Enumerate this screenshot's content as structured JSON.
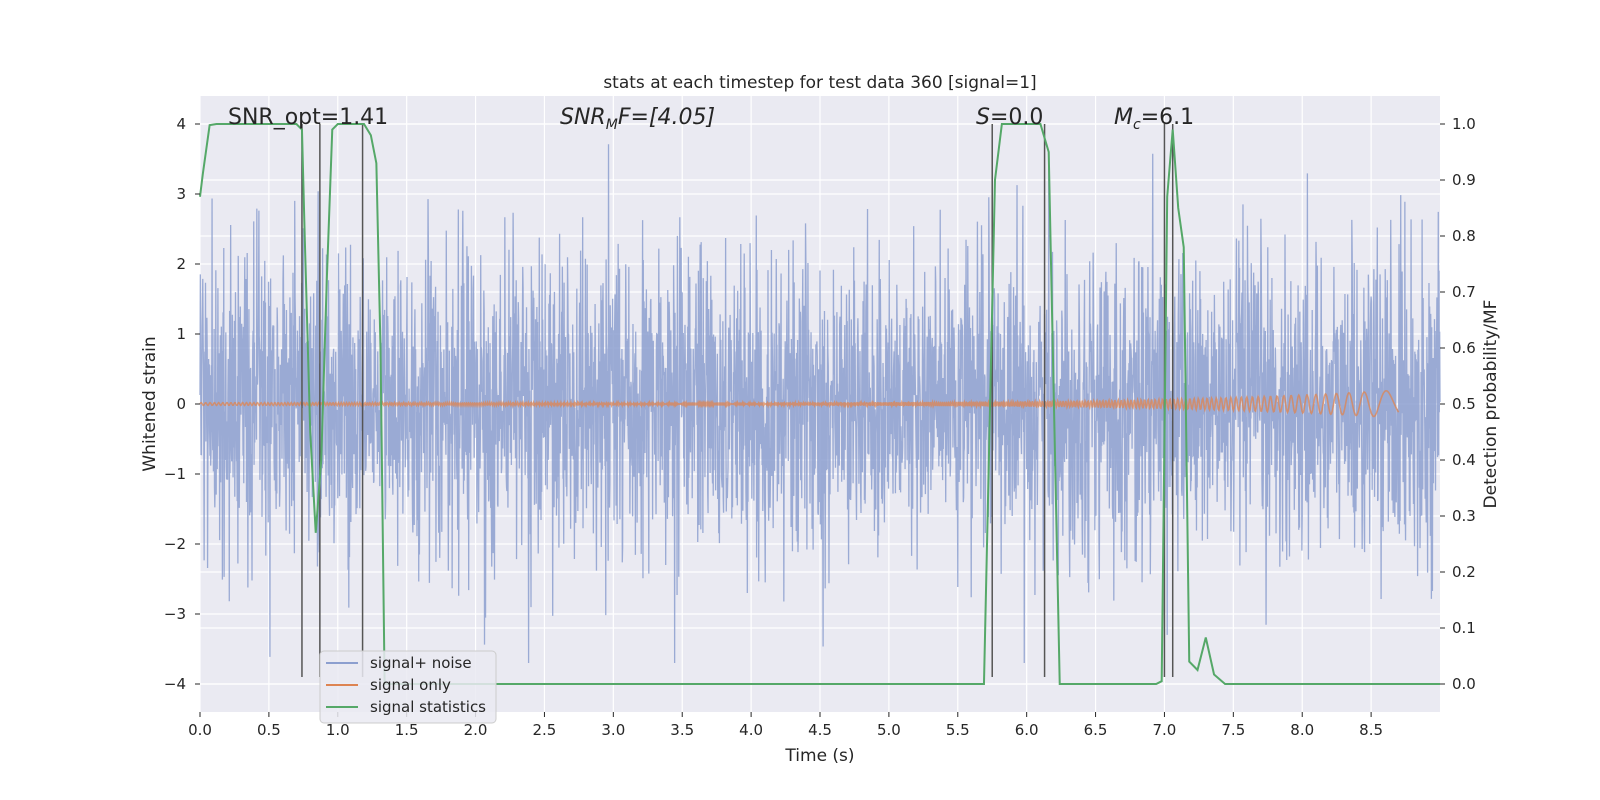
{
  "chart_data": {
    "type": "line",
    "title": "stats at each timestep for test data 360 [signal=1]",
    "xlabel": "Time (s)",
    "ylabel": "Whitened strain",
    "ylabel_right": "Detection probability/MF",
    "xlim": [
      0,
      9.0
    ],
    "ylim": [
      -4.4,
      4.4
    ],
    "ylim_right": [
      -0.05,
      1.05
    ],
    "x_ticks": [
      "0.0",
      "0.5",
      "1.0",
      "1.5",
      "2.0",
      "2.5",
      "3.0",
      "3.5",
      "4.0",
      "4.5",
      "5.0",
      "5.5",
      "6.0",
      "6.5",
      "7.0",
      "7.5",
      "8.0",
      "8.5"
    ],
    "y_ticks": [
      "4",
      "3",
      "2",
      "1",
      "0",
      "−1",
      "−2",
      "−3",
      "−4"
    ],
    "y_ticks_right": [
      "1.0",
      "0.9",
      "0.8",
      "0.7",
      "0.6",
      "0.5",
      "0.4",
      "0.3",
      "0.2",
      "0.1",
      "0.0"
    ],
    "grid": true,
    "legend_position": "lower-left",
    "annotations": {
      "snr_opt": "SNR_opt=1.41",
      "snr_mf_main": "SNR",
      "snr_mf_sub": "M",
      "snr_mf_rest": "F=[4.05]",
      "s_main": "S",
      "s_rest": "=0.0",
      "mc_main": "M",
      "mc_sub": "c",
      "mc_rest": "=6.1"
    },
    "series": [
      {
        "name": "signal+ noise",
        "color": "#8c9fcf",
        "description_noise_std": 1.05,
        "x_range": [
          0,
          9.0
        ]
      },
      {
        "name": "signal only",
        "color": "#dd8452",
        "x_range": [
          0,
          8.7
        ],
        "amplitude_end": 0.18
      },
      {
        "name": "signal statistics",
        "color": "#55a868",
        "axis": "right",
        "x": [
          0.0,
          0.02,
          0.07,
          0.12,
          0.5,
          0.7,
          0.74,
          0.76,
          0.8,
          0.84,
          0.88,
          0.92,
          0.96,
          1.0,
          1.19,
          1.24,
          1.28,
          1.31,
          1.34,
          1.4,
          1.6,
          5.69,
          5.73,
          5.77,
          5.82,
          5.87,
          6.1,
          6.16,
          6.24,
          6.4,
          6.85,
          6.94,
          6.98,
          7.02,
          7.06,
          7.1,
          7.14,
          7.18,
          7.24,
          7.3,
          7.36,
          7.44,
          9.0
        ],
        "y": [
          0.87,
          0.91,
          0.998,
          1.0,
          1.0,
          1.0,
          0.99,
          0.8,
          0.45,
          0.27,
          0.4,
          0.72,
          0.99,
          1.0,
          1.0,
          0.98,
          0.93,
          0.6,
          0.0,
          0.0,
          0.0,
          0.0,
          0.45,
          0.9,
          1.0,
          1.0,
          1.0,
          0.95,
          0.0,
          0.0,
          0.0,
          0.0,
          0.005,
          0.87,
          0.99,
          0.85,
          0.78,
          0.04,
          0.025,
          0.083,
          0.017,
          0.0,
          0.0
        ]
      }
    ],
    "vertical_markers_x": [
      0.74,
      0.87,
      1.18,
      5.75,
      6.13,
      7.0,
      7.06
    ]
  },
  "legend": [
    {
      "label": "signal+ noise",
      "color": "#8c9fcf"
    },
    {
      "label": "signal only",
      "color": "#dd8452"
    },
    {
      "label": "signal statistics",
      "color": "#55a868"
    }
  ]
}
